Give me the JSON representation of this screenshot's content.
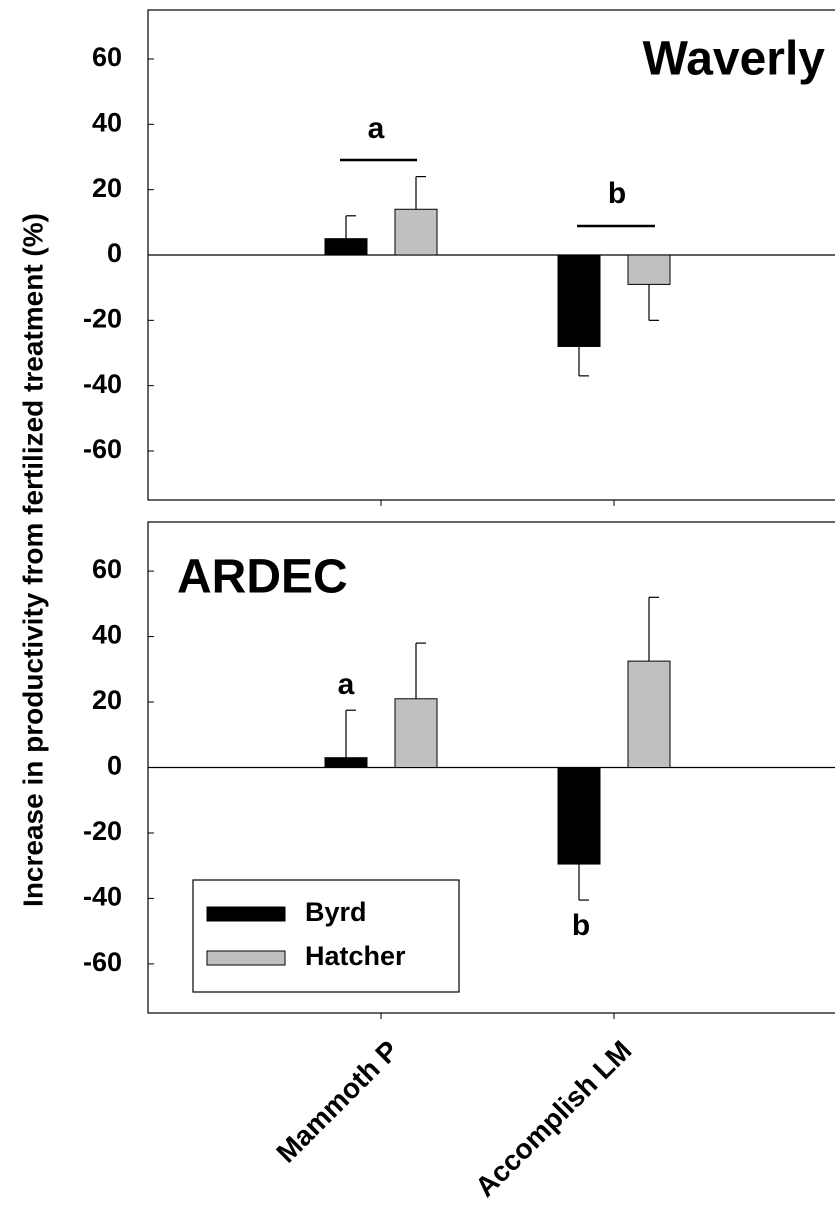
{
  "chart_data": [
    {
      "type": "bar",
      "title": "Waverly",
      "ylabel": "Increase in productivity from fertilized treatment (%)",
      "series": [
        {
          "name": "Byrd",
          "color": "#000000",
          "values": [
            5,
            -28
          ],
          "errors": [
            7,
            9
          ]
        },
        {
          "name": "Hatcher",
          "color": "#c0c0c0",
          "values": [
            14,
            -9
          ],
          "errors": [
            10,
            11
          ]
        }
      ],
      "annotations": [
        "a",
        "b"
      ],
      "ylim": [
        -75,
        75
      ],
      "yticks": [
        -60,
        -40,
        -20,
        0,
        20,
        40,
        60
      ],
      "legend": false
    },
    {
      "type": "bar",
      "title": "ARDEC",
      "categories": [
        "Mammoth P",
        "Accomplish LM"
      ],
      "series": [
        {
          "name": "Byrd",
          "color": "#000000",
          "values": [
            3,
            -29.5
          ],
          "errors": [
            14.5,
            11
          ]
        },
        {
          "name": "Hatcher",
          "color": "#c0c0c0",
          "values": [
            21,
            32.5
          ],
          "errors": [
            17,
            19.5
          ]
        }
      ],
      "annotations": [
        "a",
        "b"
      ],
      "ylim": [
        -75,
        75
      ],
      "yticks": [
        -60,
        -40,
        -20,
        0,
        20,
        40,
        60
      ],
      "legend": "lower left"
    }
  ]
}
